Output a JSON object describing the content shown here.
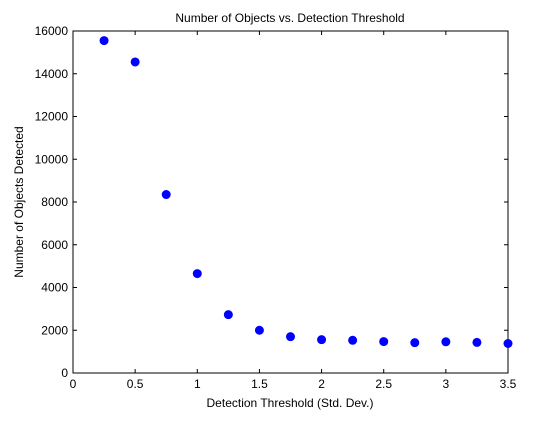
{
  "chart_data": {
    "type": "scatter",
    "title": "Number of Objects vs. Detection Threshold",
    "xlabel": "Detection Threshold (Std. Dev.)",
    "ylabel": "Number of Objects Detected",
    "xlim": [
      0,
      3.5
    ],
    "ylim": [
      0,
      16000
    ],
    "grid": false,
    "marker_color": "#0000ff",
    "x_ticks": [
      {
        "value": 0,
        "label": "0"
      },
      {
        "value": 0.5,
        "label": "0.5"
      },
      {
        "value": 1,
        "label": "1"
      },
      {
        "value": 1.5,
        "label": "1.5"
      },
      {
        "value": 2,
        "label": "2"
      },
      {
        "value": 2.5,
        "label": "2.5"
      },
      {
        "value": 3,
        "label": "3"
      },
      {
        "value": 3.5,
        "label": "3.5"
      }
    ],
    "y_ticks": [
      {
        "value": 0,
        "label": "0"
      },
      {
        "value": 2000,
        "label": "2000"
      },
      {
        "value": 4000,
        "label": "4000"
      },
      {
        "value": 6000,
        "label": "6000"
      },
      {
        "value": 8000,
        "label": "8000"
      },
      {
        "value": 10000,
        "label": "10000"
      },
      {
        "value": 12000,
        "label": "12000"
      },
      {
        "value": 14000,
        "label": "14000"
      },
      {
        "value": 16000,
        "label": "16000"
      }
    ],
    "points": [
      {
        "x": 0.25,
        "y": 15550
      },
      {
        "x": 0.5,
        "y": 14550
      },
      {
        "x": 0.75,
        "y": 8350
      },
      {
        "x": 1.0,
        "y": 4650
      },
      {
        "x": 1.25,
        "y": 2730
      },
      {
        "x": 1.5,
        "y": 2000
      },
      {
        "x": 1.75,
        "y": 1700
      },
      {
        "x": 2.0,
        "y": 1560
      },
      {
        "x": 2.25,
        "y": 1530
      },
      {
        "x": 2.5,
        "y": 1470
      },
      {
        "x": 2.75,
        "y": 1420
      },
      {
        "x": 3.0,
        "y": 1460
      },
      {
        "x": 3.25,
        "y": 1430
      },
      {
        "x": 3.5,
        "y": 1380
      }
    ]
  }
}
